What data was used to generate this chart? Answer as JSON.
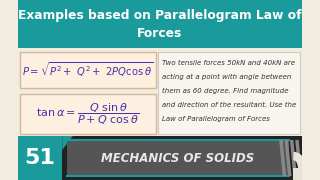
{
  "bg_color": "#f0ece0",
  "title_bg_top": "#1a9a9a",
  "title_bg_bottom": "#147070",
  "title_text_line1": "Examples based on Parallelogram Law of",
  "title_text_line2": "Forces",
  "title_color": "#ffffff",
  "formula1": "$P= \\sqrt{P^2 +\\ Q^2 +\\ 2PQ\\cos\\theta}$",
  "formula2": "$\\tan\\alpha = \\dfrac{Q\\ \\sin\\theta}{P + Q\\ \\cos\\theta}$",
  "formula_box_color": "#fdf0e0",
  "formula_border": "#d4b896",
  "formula_text_color": "#4433aa",
  "right_text_lines": [
    "Two tensile forces 50kN and 40kN are",
    "acting at a point with angle between",
    "them as 60 degree. Find magnitude",
    "and direction of the resultant. Use the",
    "Law of Parallelogram of Forces"
  ],
  "right_text_color": "#333333",
  "right_box_bg": "#f8f5ee",
  "right_box_border": "#cccccc",
  "bottom_outer_bg": "#222222",
  "bottom_inner_bg": "#555555",
  "bottom_bar_text": "MECHANICS OF SOLIDS",
  "bottom_bar_text_color": "#e8e8e8",
  "badge_bg": "#1a9a9a",
  "badge_text": "51",
  "badge_text_color": "#ffffff",
  "teal_line_color": "#1a9a9a",
  "stripe_color": "#888888",
  "white_corner_color": "#e8e4d8"
}
